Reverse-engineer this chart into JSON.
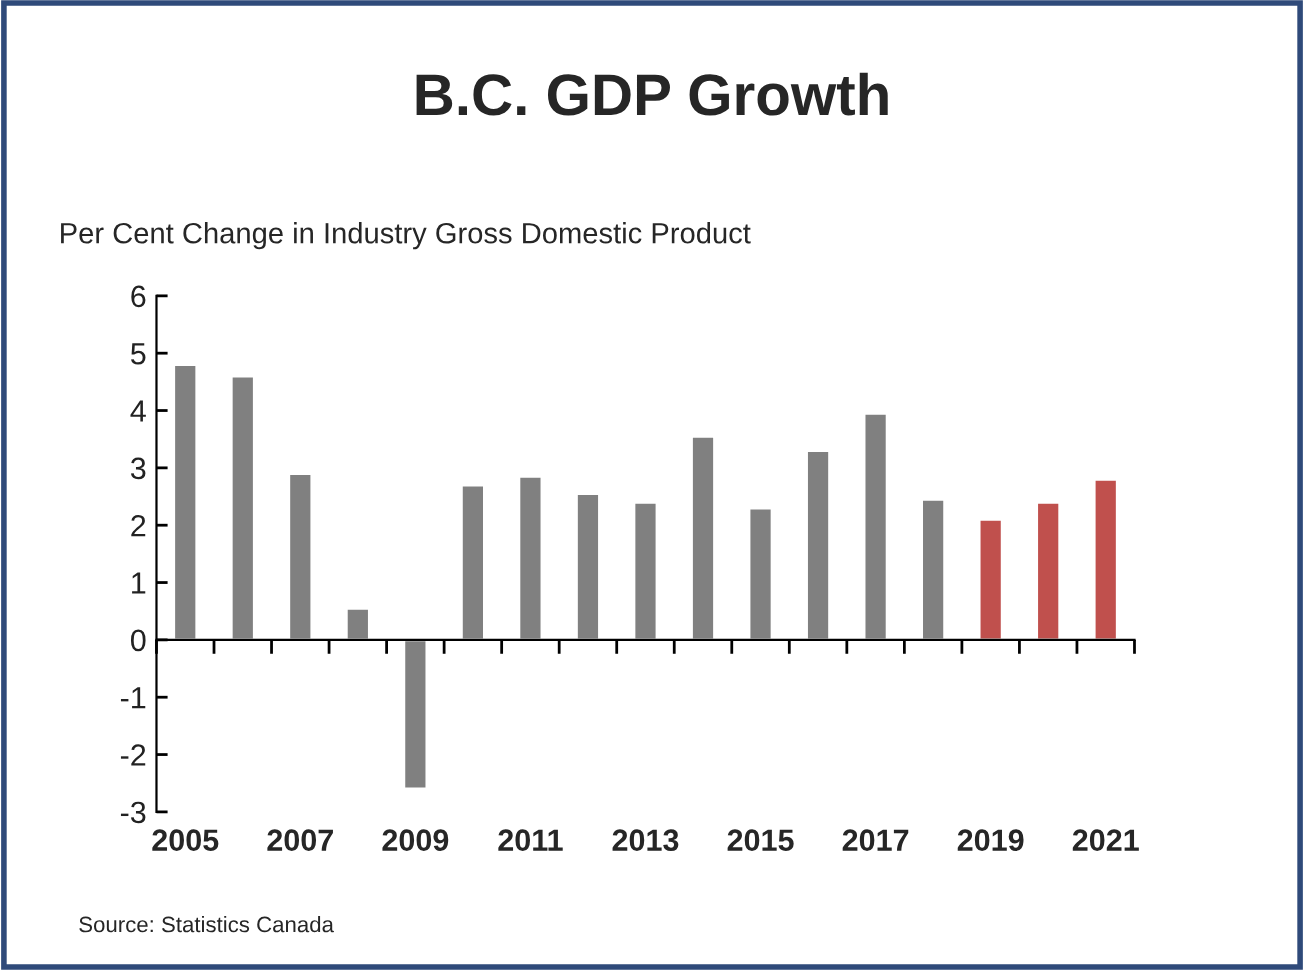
{
  "chart_data": {
    "type": "bar",
    "title": "B.C. GDP Growth",
    "subtitle": "Per Cent Change in Industry Gross Domestic Product",
    "categories": [
      "2005",
      null,
      "2007",
      null,
      "2009",
      null,
      "2011",
      null,
      "2013",
      null,
      "2015",
      null,
      "2017",
      null,
      "2019",
      null,
      "2021"
    ],
    "values": [
      4.8,
      4.6,
      2.9,
      0.55,
      -2.6,
      2.7,
      2.85,
      2.55,
      2.4,
      3.55,
      2.3,
      3.3,
      3.95,
      2.45,
      2.1,
      2.4,
      2.8
    ],
    "colors": [
      "#808080",
      "#808080",
      "#808080",
      "#808080",
      "#808080",
      "#808080",
      "#808080",
      "#808080",
      "#808080",
      "#808080",
      "#808080",
      "#808080",
      "#808080",
      "#808080",
      "#c0504d",
      "#c0504d",
      "#c0504d"
    ],
    "ylim": [
      -3,
      6
    ],
    "yticks": [
      -3,
      -2,
      -1,
      0,
      1,
      2,
      3,
      4,
      5,
      6
    ],
    "legend": false,
    "annotations": [
      "Source: Statistics Canada"
    ]
  }
}
